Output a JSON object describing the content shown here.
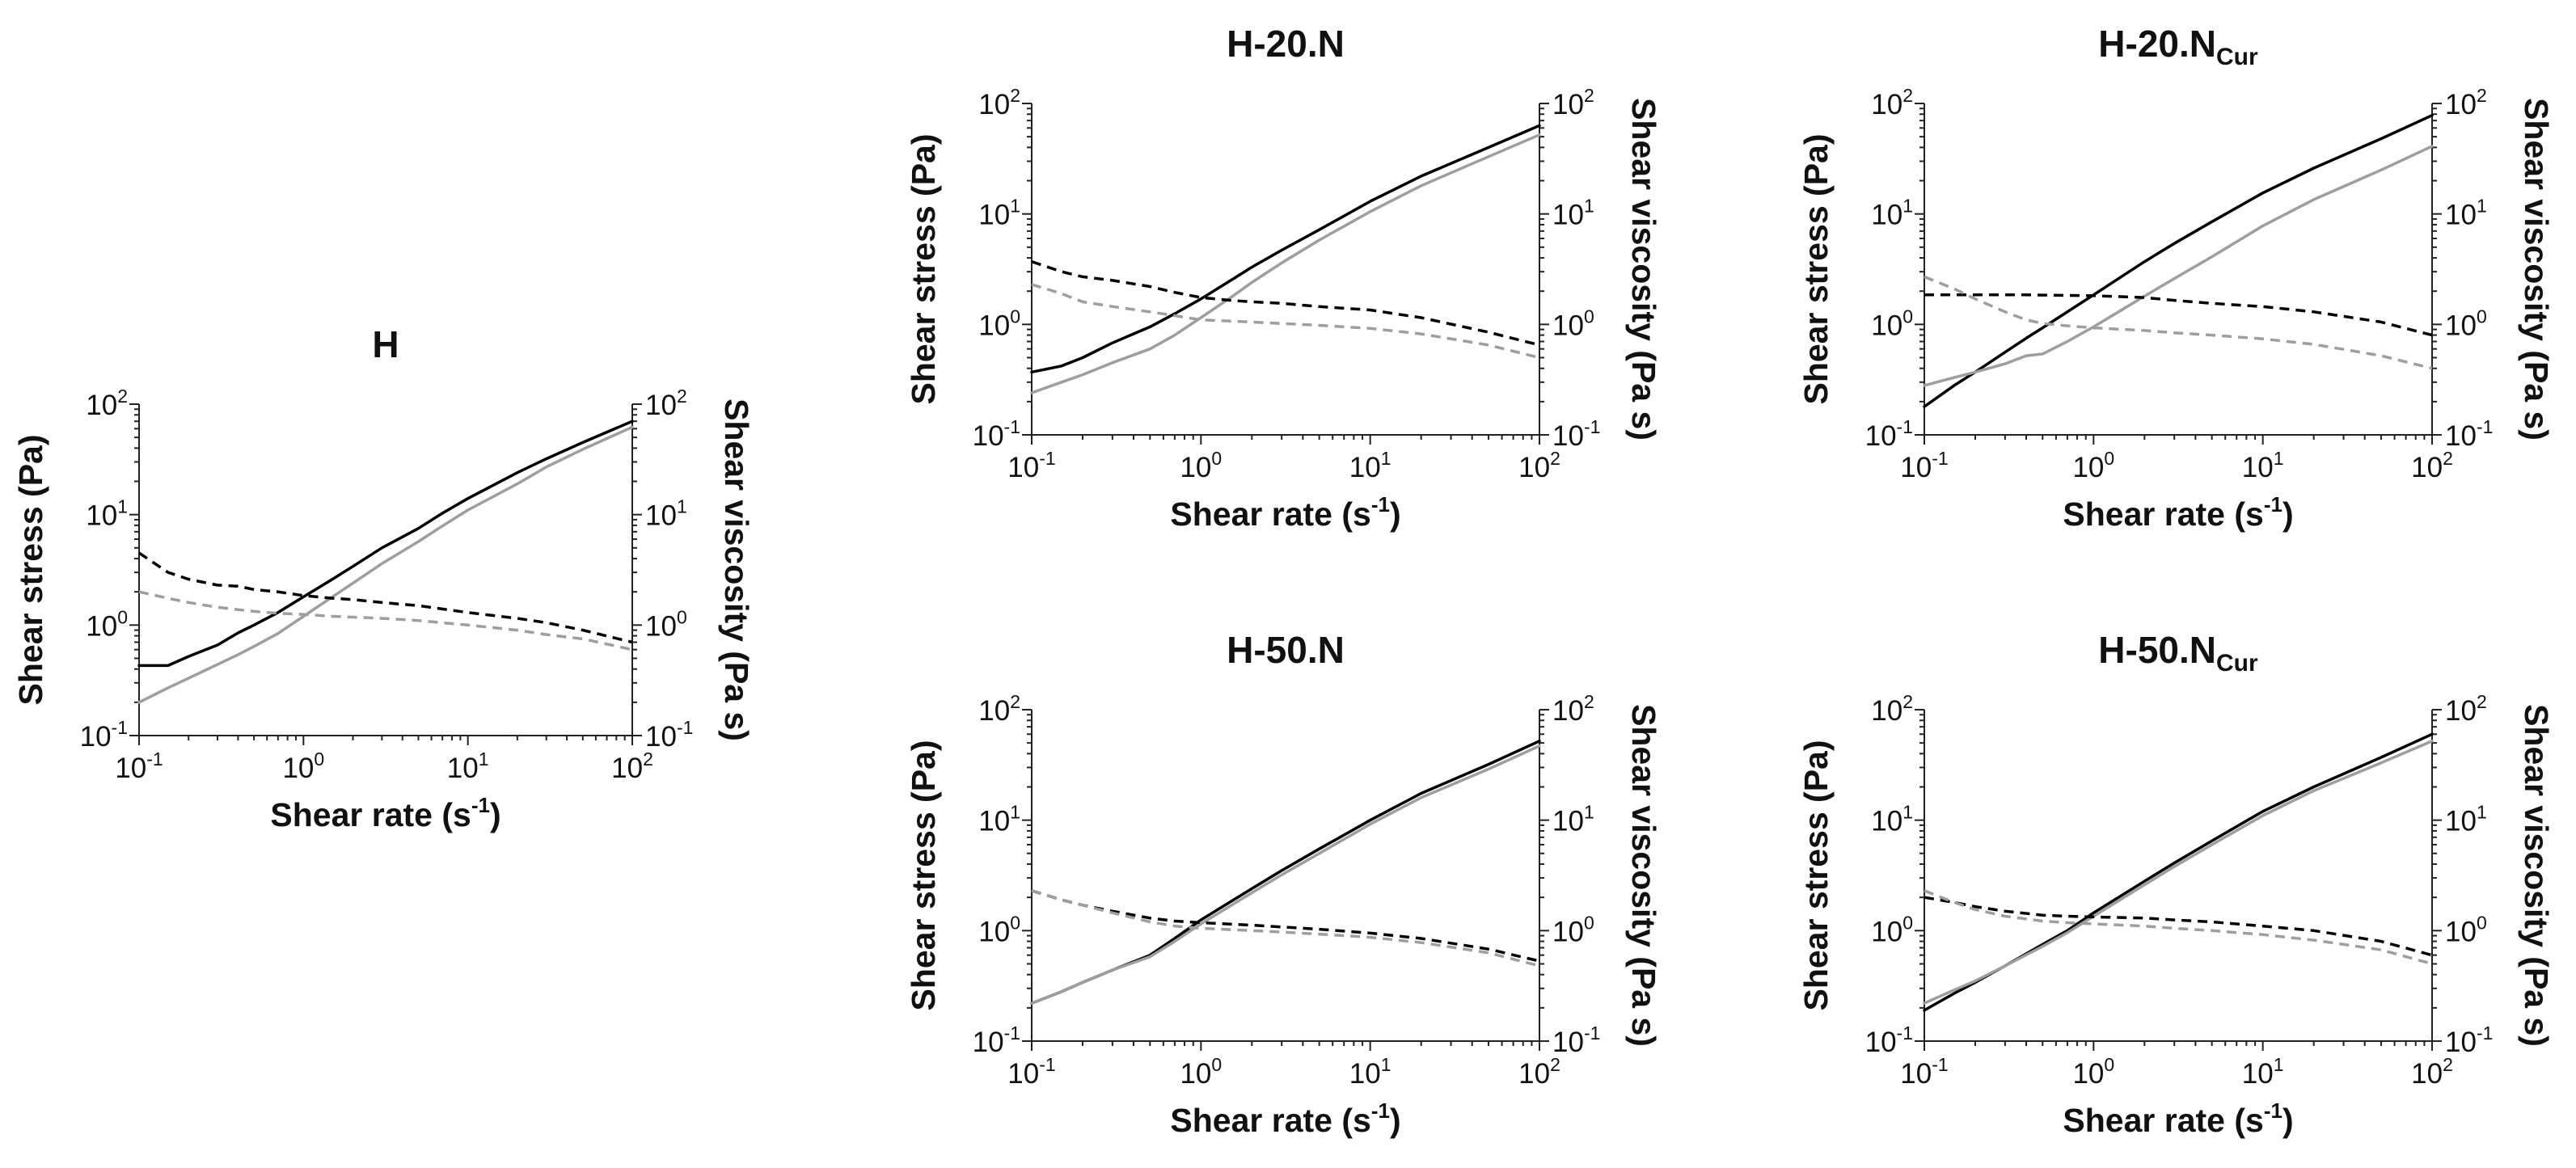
{
  "figure": {
    "xlabel_text": "Shear rate (s",
    "xlabel_unit_exp": "-1",
    "ylabel_left": "Shear stress (Pa)",
    "ylabel_right": "Shear viscosity (Pa s)",
    "tick_base": "10",
    "tick_exponents": [
      "-1",
      "0",
      "1",
      "2"
    ],
    "colors": {
      "sample": "#000000",
      "reference": "#9e9e9e"
    }
  },
  "chart_data": [
    {
      "type": "line",
      "title": "H",
      "xscale": "log",
      "yscale": "log",
      "xlim": [
        0.1,
        100
      ],
      "ylim": [
        0.1,
        100
      ],
      "y2lim": [
        0.1,
        100
      ],
      "x": [
        0.1,
        0.15,
        0.2,
        0.3,
        0.4,
        0.5,
        0.7,
        1,
        1.5,
        2,
        3,
        5,
        7,
        10,
        20,
        30,
        50,
        100
      ],
      "series": [
        {
          "name": "shear stress (black)",
          "axis": "left",
          "style": "solid",
          "color": "#000000",
          "values": [
            0.43,
            0.43,
            0.52,
            0.66,
            0.85,
            1.0,
            1.3,
            1.8,
            2.6,
            3.4,
            5.0,
            7.5,
            10.3,
            14,
            24,
            32,
            45,
            70
          ]
        },
        {
          "name": "shear stress (grey)",
          "axis": "left",
          "style": "solid",
          "color": "#9e9e9e",
          "values": [
            0.2,
            0.27,
            0.33,
            0.44,
            0.54,
            0.64,
            0.84,
            1.2,
            1.8,
            2.4,
            3.6,
            5.7,
            7.9,
            11,
            19,
            27,
            39,
            62
          ]
        },
        {
          "name": "shear viscosity (black)",
          "axis": "right",
          "style": "dashed",
          "color": "#000000",
          "values": [
            4.5,
            3.0,
            2.6,
            2.3,
            2.25,
            2.1,
            2.0,
            1.85,
            1.75,
            1.7,
            1.6,
            1.5,
            1.4,
            1.3,
            1.15,
            1.05,
            0.9,
            0.7
          ]
        },
        {
          "name": "shear viscosity (grey)",
          "axis": "right",
          "style": "dashed",
          "color": "#9e9e9e",
          "values": [
            2.0,
            1.75,
            1.6,
            1.45,
            1.38,
            1.33,
            1.28,
            1.25,
            1.2,
            1.18,
            1.15,
            1.1,
            1.05,
            1.0,
            0.9,
            0.82,
            0.75,
            0.6
          ]
        }
      ]
    },
    {
      "type": "line",
      "title": "H-20.N",
      "xscale": "log",
      "yscale": "log",
      "xlim": [
        0.1,
        100
      ],
      "ylim": [
        0.1,
        100
      ],
      "y2lim": [
        0.1,
        100
      ],
      "x": [
        0.1,
        0.15,
        0.2,
        0.3,
        0.5,
        0.7,
        1,
        1.5,
        2,
        3,
        5,
        10,
        20,
        50,
        100
      ],
      "series": [
        {
          "name": "shear stress (black)",
          "axis": "left",
          "style": "solid",
          "color": "#000000",
          "values": [
            0.37,
            0.42,
            0.5,
            0.68,
            0.95,
            1.25,
            1.7,
            2.5,
            3.3,
            4.7,
            7.2,
            13,
            22,
            40,
            63
          ]
        },
        {
          "name": "shear stress (grey)",
          "axis": "left",
          "style": "solid",
          "color": "#9e9e9e",
          "values": [
            0.24,
            0.3,
            0.35,
            0.45,
            0.6,
            0.8,
            1.15,
            1.75,
            2.4,
            3.6,
            5.8,
            10.5,
            18,
            33,
            52
          ]
        },
        {
          "name": "shear viscosity (black)",
          "axis": "right",
          "style": "dashed",
          "color": "#000000",
          "values": [
            3.7,
            3.0,
            2.7,
            2.5,
            2.2,
            1.95,
            1.75,
            1.65,
            1.6,
            1.55,
            1.45,
            1.35,
            1.15,
            0.85,
            0.65
          ]
        },
        {
          "name": "shear viscosity (grey)",
          "axis": "right",
          "style": "dashed",
          "color": "#9e9e9e",
          "values": [
            2.3,
            1.9,
            1.6,
            1.45,
            1.3,
            1.2,
            1.1,
            1.07,
            1.05,
            1.02,
            0.98,
            0.92,
            0.82,
            0.65,
            0.5
          ]
        }
      ]
    },
    {
      "type": "line",
      "title": "H-20.N",
      "title_subscript": "Cur",
      "xscale": "log",
      "yscale": "log",
      "xlim": [
        0.1,
        100
      ],
      "ylim": [
        0.1,
        100
      ],
      "y2lim": [
        0.1,
        100
      ],
      "x": [
        0.1,
        0.15,
        0.2,
        0.3,
        0.4,
        0.5,
        0.7,
        1,
        2,
        3,
        5,
        10,
        20,
        50,
        100
      ],
      "series": [
        {
          "name": "shear stress (black)",
          "axis": "left",
          "style": "solid",
          "color": "#000000",
          "values": [
            0.18,
            0.28,
            0.37,
            0.56,
            0.75,
            0.93,
            1.3,
            1.85,
            3.7,
            5.4,
            8.5,
            15.5,
            26,
            48,
            78
          ]
        },
        {
          "name": "shear stress (grey)",
          "axis": "left",
          "style": "solid",
          "color": "#9e9e9e",
          "values": [
            0.28,
            0.33,
            0.37,
            0.44,
            0.52,
            0.54,
            0.7,
            0.95,
            1.8,
            2.6,
            4.1,
            7.8,
            13.5,
            25,
            41
          ]
        },
        {
          "name": "shear viscosity (black)",
          "axis": "right",
          "style": "dashed",
          "color": "#000000",
          "values": [
            1.85,
            1.85,
            1.85,
            1.85,
            1.85,
            1.84,
            1.83,
            1.82,
            1.75,
            1.65,
            1.55,
            1.45,
            1.3,
            1.05,
            0.8
          ]
        },
        {
          "name": "shear viscosity (grey)",
          "axis": "right",
          "style": "dashed",
          "color": "#9e9e9e",
          "values": [
            2.7,
            2.1,
            1.7,
            1.3,
            1.1,
            1.02,
            0.97,
            0.93,
            0.88,
            0.84,
            0.8,
            0.74,
            0.66,
            0.52,
            0.4
          ]
        }
      ]
    },
    {
      "type": "line",
      "title": "H-50.N",
      "xscale": "log",
      "yscale": "log",
      "xlim": [
        0.1,
        100
      ],
      "ylim": [
        0.1,
        100
      ],
      "y2lim": [
        0.1,
        100
      ],
      "x": [
        0.1,
        0.15,
        0.2,
        0.3,
        0.5,
        0.7,
        1,
        2,
        3,
        5,
        10,
        20,
        50,
        100
      ],
      "series": [
        {
          "name": "shear stress (black)",
          "axis": "left",
          "style": "solid",
          "color": "#000000",
          "values": [
            0.22,
            0.28,
            0.34,
            0.44,
            0.6,
            0.85,
            1.25,
            2.4,
            3.5,
            5.5,
            10,
            17.5,
            32,
            52
          ]
        },
        {
          "name": "shear stress (grey)",
          "axis": "left",
          "style": "solid",
          "color": "#9e9e9e",
          "values": [
            0.22,
            0.28,
            0.34,
            0.44,
            0.58,
            0.8,
            1.15,
            2.2,
            3.2,
            5.0,
            9.2,
            16,
            29,
            47
          ]
        },
        {
          "name": "shear viscosity (black)",
          "axis": "right",
          "style": "dashed",
          "color": "#000000",
          "values": [
            2.3,
            1.9,
            1.7,
            1.5,
            1.3,
            1.22,
            1.18,
            1.12,
            1.08,
            1.03,
            0.95,
            0.85,
            0.68,
            0.53
          ]
        },
        {
          "name": "shear viscosity (grey)",
          "axis": "right",
          "style": "dashed",
          "color": "#9e9e9e",
          "values": [
            2.3,
            1.9,
            1.7,
            1.45,
            1.2,
            1.1,
            1.05,
            1.0,
            0.97,
            0.93,
            0.87,
            0.78,
            0.63,
            0.48
          ]
        }
      ]
    },
    {
      "type": "line",
      "title": "H-50.N",
      "title_subscript": "Cur",
      "xscale": "log",
      "yscale": "log",
      "xlim": [
        0.1,
        100
      ],
      "ylim": [
        0.1,
        100
      ],
      "y2lim": [
        0.1,
        100
      ],
      "x": [
        0.1,
        0.15,
        0.2,
        0.3,
        0.5,
        0.7,
        1,
        2,
        3,
        5,
        10,
        20,
        50,
        100
      ],
      "series": [
        {
          "name": "shear stress (black)",
          "axis": "left",
          "style": "solid",
          "color": "#000000",
          "values": [
            0.19,
            0.27,
            0.34,
            0.48,
            0.75,
            1.0,
            1.45,
            2.8,
            4.1,
            6.5,
            12,
            20,
            37,
            60
          ]
        },
        {
          "name": "shear stress (grey)",
          "axis": "left",
          "style": "solid",
          "color": "#9e9e9e",
          "values": [
            0.22,
            0.29,
            0.35,
            0.48,
            0.72,
            0.96,
            1.35,
            2.6,
            3.8,
            6.0,
            11,
            18.5,
            33,
            52
          ]
        },
        {
          "name": "shear viscosity (black)",
          "axis": "right",
          "style": "dashed",
          "color": "#000000",
          "values": [
            2.0,
            1.8,
            1.65,
            1.5,
            1.38,
            1.35,
            1.33,
            1.3,
            1.25,
            1.2,
            1.1,
            1.0,
            0.8,
            0.6
          ]
        },
        {
          "name": "shear viscosity (grey)",
          "axis": "right",
          "style": "dashed",
          "color": "#9e9e9e",
          "values": [
            2.3,
            1.8,
            1.55,
            1.35,
            1.22,
            1.18,
            1.15,
            1.1,
            1.05,
            1.0,
            0.92,
            0.82,
            0.67,
            0.5
          ]
        }
      ]
    }
  ]
}
